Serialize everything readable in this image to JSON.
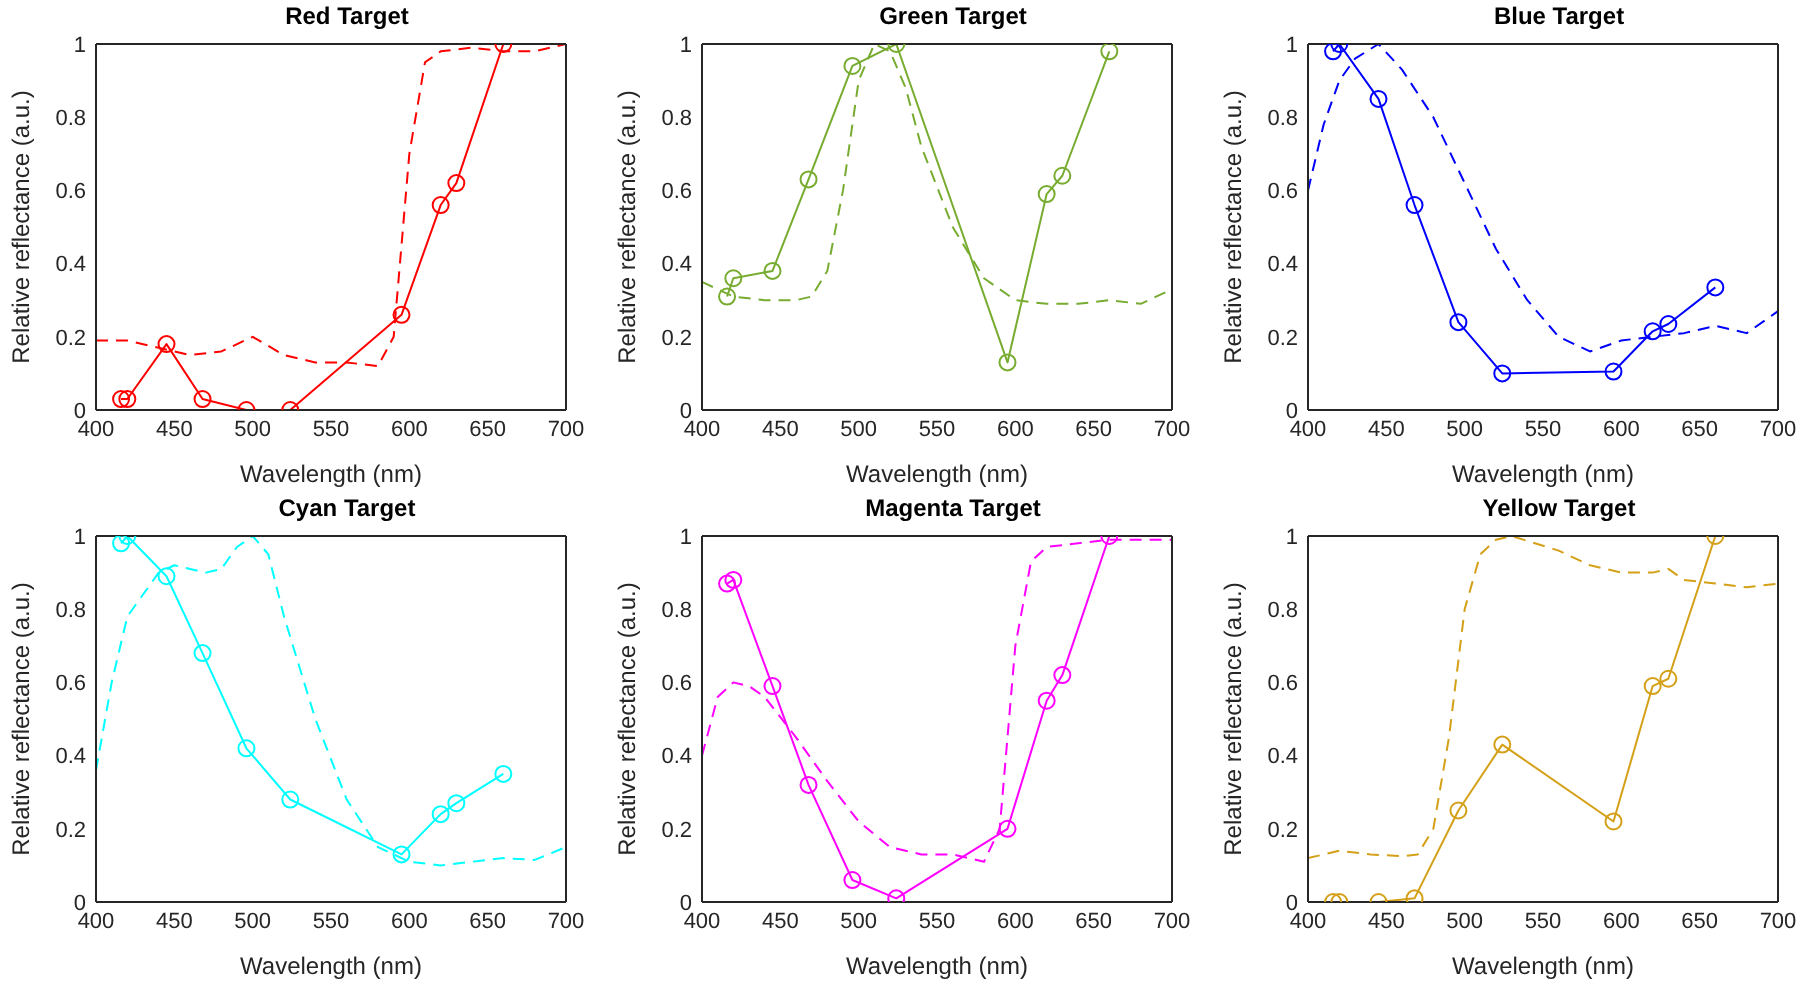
{
  "chart_data": [
    {
      "type": "line",
      "title": "Red Target",
      "xlabel": "Wavelength (nm)",
      "ylabel": "Relative reflectance (a.u.)",
      "xlim": [
        400,
        700
      ],
      "xticks": [
        400,
        450,
        500,
        550,
        600,
        650,
        700
      ],
      "ylim": [
        0,
        1
      ],
      "yticks": [
        0,
        0.2,
        0.4,
        0.6,
        0.8,
        1
      ],
      "grid": false,
      "legend": false,
      "series": [
        {
          "color": "#ff0000",
          "marker": "circle",
          "line_style": "solid",
          "x": [
            416,
            420,
            445,
            468,
            496,
            524,
            595,
            620,
            630,
            660
          ],
          "values": [
            0.03,
            0.03,
            0.18,
            0.03,
            0.0,
            0.0,
            0.26,
            0.56,
            0.62,
            1.0
          ]
        },
        {
          "color": "#ff0000",
          "marker": "none",
          "line_style": "dashed",
          "x": [
            400,
            420,
            440,
            460,
            480,
            500,
            520,
            540,
            560,
            580,
            590,
            600,
            610,
            620,
            640,
            660,
            680,
            700
          ],
          "values": [
            0.19,
            0.19,
            0.17,
            0.15,
            0.16,
            0.2,
            0.15,
            0.13,
            0.13,
            0.12,
            0.2,
            0.7,
            0.95,
            0.98,
            0.99,
            0.98,
            0.98,
            1.0
          ]
        }
      ]
    },
    {
      "type": "line",
      "title": "Green Target",
      "xlabel": "Wavelength (nm)",
      "ylabel": "Relative reflectance (a.u.)",
      "xlim": [
        400,
        700
      ],
      "xticks": [
        400,
        450,
        500,
        550,
        600,
        650,
        700
      ],
      "ylim": [
        0,
        1
      ],
      "yticks": [
        0,
        0.2,
        0.4,
        0.6,
        0.8,
        1
      ],
      "grid": false,
      "legend": false,
      "series": [
        {
          "color": "#77ac30",
          "marker": "circle",
          "line_style": "solid",
          "x": [
            416,
            420,
            445,
            468,
            496,
            524,
            595,
            620,
            630,
            660
          ],
          "values": [
            0.31,
            0.36,
            0.38,
            0.63,
            0.94,
            1.0,
            0.13,
            0.59,
            0.64,
            0.98
          ]
        },
        {
          "color": "#77ac30",
          "marker": "none",
          "line_style": "dashed",
          "x": [
            400,
            420,
            440,
            460,
            470,
            480,
            490,
            500,
            510,
            520,
            530,
            540,
            560,
            580,
            600,
            620,
            640,
            660,
            680,
            700
          ],
          "values": [
            0.35,
            0.31,
            0.3,
            0.3,
            0.31,
            0.38,
            0.6,
            0.9,
            1.0,
            0.98,
            0.88,
            0.72,
            0.5,
            0.36,
            0.3,
            0.29,
            0.29,
            0.3,
            0.29,
            0.33
          ]
        }
      ]
    },
    {
      "type": "line",
      "title": "Blue Target",
      "xlabel": "Wavelength (nm)",
      "ylabel": "Relative reflectance (a.u.)",
      "xlim": [
        400,
        700
      ],
      "xticks": [
        400,
        450,
        500,
        550,
        600,
        650,
        700
      ],
      "ylim": [
        0,
        1
      ],
      "yticks": [
        0,
        0.2,
        0.4,
        0.6,
        0.8,
        1
      ],
      "grid": false,
      "legend": false,
      "series": [
        {
          "color": "#0000ff",
          "marker": "circle",
          "line_style": "solid",
          "x": [
            416,
            420,
            445,
            468,
            496,
            524,
            595,
            620,
            630,
            660
          ],
          "values": [
            0.98,
            1.0,
            0.85,
            0.56,
            0.24,
            0.1,
            0.105,
            0.215,
            0.235,
            0.335
          ]
        },
        {
          "color": "#0000ff",
          "marker": "none",
          "line_style": "dashed",
          "x": [
            400,
            410,
            420,
            430,
            445,
            460,
            480,
            500,
            520,
            540,
            560,
            580,
            600,
            620,
            640,
            660,
            680,
            700
          ],
          "values": [
            0.6,
            0.78,
            0.9,
            0.96,
            1.0,
            0.93,
            0.8,
            0.62,
            0.44,
            0.3,
            0.2,
            0.16,
            0.19,
            0.2,
            0.21,
            0.23,
            0.21,
            0.27
          ]
        }
      ]
    },
    {
      "type": "line",
      "title": "Cyan Target",
      "xlabel": "Wavelength (nm)",
      "ylabel": "Relative reflectance (a.u.)",
      "xlim": [
        400,
        700
      ],
      "xticks": [
        400,
        450,
        500,
        550,
        600,
        650,
        700
      ],
      "ylim": [
        0,
        1
      ],
      "yticks": [
        0,
        0.2,
        0.4,
        0.6,
        0.8,
        1
      ],
      "grid": false,
      "legend": false,
      "series": [
        {
          "color": "#00ffff",
          "marker": "circle",
          "line_style": "solid",
          "x": [
            416,
            420,
            445,
            468,
            496,
            524,
            595,
            620,
            630,
            660
          ],
          "values": [
            0.98,
            1.0,
            0.89,
            0.68,
            0.42,
            0.28,
            0.13,
            0.24,
            0.27,
            0.35
          ]
        },
        {
          "color": "#00ffff",
          "marker": "none",
          "line_style": "dashed",
          "x": [
            400,
            410,
            420,
            440,
            450,
            470,
            480,
            490,
            500,
            510,
            520,
            540,
            560,
            580,
            600,
            620,
            640,
            660,
            680,
            700
          ],
          "values": [
            0.36,
            0.6,
            0.78,
            0.9,
            0.92,
            0.9,
            0.91,
            0.97,
            1.0,
            0.95,
            0.78,
            0.5,
            0.28,
            0.15,
            0.11,
            0.1,
            0.11,
            0.12,
            0.115,
            0.15
          ]
        }
      ]
    },
    {
      "type": "line",
      "title": "Magenta Target",
      "xlabel": "Wavelength (nm)",
      "ylabel": "Relative reflectance (a.u.)",
      "xlim": [
        400,
        700
      ],
      "xticks": [
        400,
        450,
        500,
        550,
        600,
        650,
        700
      ],
      "ylim": [
        0,
        1
      ],
      "yticks": [
        0,
        0.2,
        0.4,
        0.6,
        0.8,
        1
      ],
      "grid": false,
      "legend": false,
      "series": [
        {
          "color": "#ff00ff",
          "marker": "circle",
          "line_style": "solid",
          "x": [
            416,
            420,
            445,
            468,
            496,
            524,
            595,
            620,
            630,
            660
          ],
          "values": [
            0.87,
            0.88,
            0.59,
            0.32,
            0.06,
            0.01,
            0.2,
            0.55,
            0.62,
            1.0
          ]
        },
        {
          "color": "#ff00ff",
          "marker": "none",
          "line_style": "dashed",
          "x": [
            400,
            410,
            420,
            430,
            440,
            460,
            480,
            500,
            520,
            540,
            560,
            580,
            590,
            600,
            610,
            620,
            640,
            660,
            680,
            700
          ],
          "values": [
            0.4,
            0.56,
            0.6,
            0.59,
            0.56,
            0.45,
            0.33,
            0.22,
            0.15,
            0.13,
            0.13,
            0.11,
            0.2,
            0.7,
            0.93,
            0.97,
            0.98,
            0.99,
            0.99,
            0.99
          ]
        }
      ]
    },
    {
      "type": "line",
      "title": "Yellow Target",
      "xlabel": "Wavelength (nm)",
      "ylabel": "Relative reflectance (a.u.)",
      "xlim": [
        400,
        700
      ],
      "xticks": [
        400,
        450,
        500,
        550,
        600,
        650,
        700
      ],
      "ylim": [
        0,
        1
      ],
      "yticks": [
        0,
        0.2,
        0.4,
        0.6,
        0.8,
        1
      ],
      "grid": false,
      "legend": false,
      "series": [
        {
          "color": "#d4a017",
          "marker": "circle",
          "line_style": "solid",
          "x": [
            416,
            420,
            445,
            468,
            496,
            524,
            595,
            620,
            630,
            660
          ],
          "values": [
            0.0,
            0.0,
            0.0,
            0.01,
            0.25,
            0.43,
            0.22,
            0.59,
            0.61,
            1.0
          ]
        },
        {
          "color": "#d4a017",
          "marker": "none",
          "line_style": "dashed",
          "x": [
            400,
            420,
            440,
            460,
            470,
            480,
            490,
            500,
            510,
            520,
            530,
            560,
            580,
            600,
            620,
            630,
            640,
            660,
            680,
            700
          ],
          "values": [
            0.12,
            0.14,
            0.13,
            0.125,
            0.13,
            0.2,
            0.45,
            0.8,
            0.95,
            0.99,
            1.0,
            0.96,
            0.92,
            0.9,
            0.9,
            0.91,
            0.88,
            0.87,
            0.86,
            0.87
          ]
        }
      ]
    }
  ]
}
